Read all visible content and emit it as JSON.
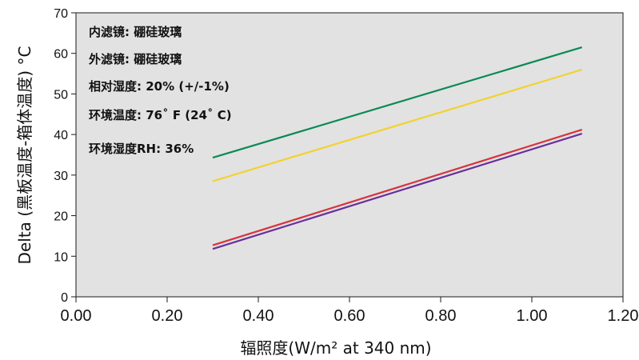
{
  "chart_data": {
    "type": "line",
    "title": "",
    "xlabel": "辐照度(W/m² at 340 nm)",
    "ylabel": "Delta (黑板温度-箱体温度) °C",
    "xlim": [
      0,
      1.2
    ],
    "ylim": [
      0,
      70
    ],
    "x_ticks": [
      "0.00",
      "0.20",
      "0.40",
      "0.60",
      "0.80",
      "1.00",
      "1.20"
    ],
    "y_ticks": [
      "0",
      "10",
      "20",
      "30",
      "40",
      "50",
      "60",
      "70"
    ],
    "grid": false,
    "legend": "none",
    "annotations": [
      "内滤镜: 硼硅玻璃",
      "外滤镜: 硼硅玻璃",
      "相对湿度: 20% (+/-1%)",
      "环境温度: 76˚ F (24˚ C)",
      "环境湿度RH: 36%"
    ],
    "series": [
      {
        "color": "#0b8a55",
        "x": [
          0.3,
          1.11
        ],
        "y": [
          34.3,
          61.5
        ]
      },
      {
        "color": "#f2d22e",
        "x": [
          0.3,
          1.11
        ],
        "y": [
          28.5,
          56.0
        ]
      },
      {
        "color": "#d6343f",
        "x": [
          0.3,
          1.11
        ],
        "y": [
          12.7,
          41.2
        ]
      },
      {
        "color": "#6a2f9a",
        "x": [
          0.3,
          1.11
        ],
        "y": [
          11.8,
          40.2
        ]
      }
    ]
  }
}
